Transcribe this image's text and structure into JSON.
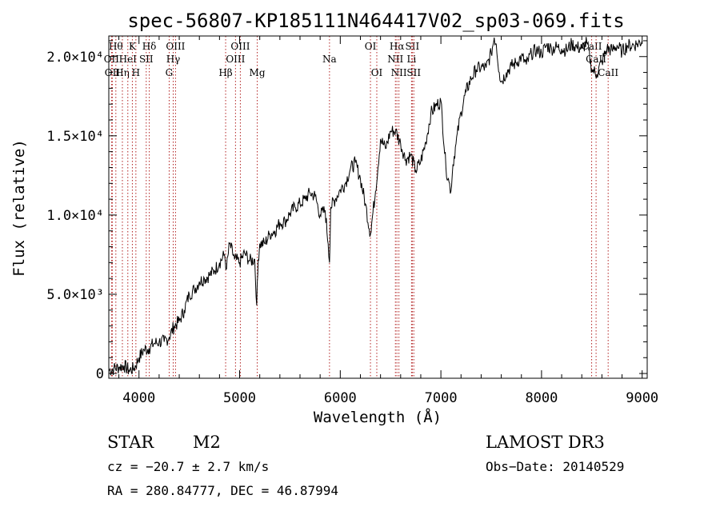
{
  "chart_data": {
    "type": "line",
    "title": "spec-56807-KP185111N464417V02_sp03-069.fits",
    "xlabel": "Wavelength (Å)",
    "ylabel": "Flux (relative)",
    "xlim": [
      3700,
      9050
    ],
    "ylim": [
      -300,
      21300
    ],
    "x_ticks": [
      4000,
      5000,
      6000,
      7000,
      8000,
      9000
    ],
    "x_tick_labels": [
      "4000",
      "5000",
      "6000",
      "7000",
      "8000",
      "9000"
    ],
    "y_ticks": [
      0,
      5000,
      10000,
      15000,
      20000
    ],
    "y_tick_labels": [
      "0",
      "5.0×10³",
      "1.0×10⁴",
      "1.5×10⁴",
      "2.0×10⁴"
    ],
    "series": [
      {
        "name": "spectrum",
        "x": [
          3700,
          3750,
          3800,
          3850,
          3900,
          3950,
          4000,
          4050,
          4100,
          4150,
          4200,
          4250,
          4300,
          4350,
          4400,
          4450,
          4500,
          4550,
          4600,
          4650,
          4700,
          4750,
          4800,
          4850,
          4870,
          4900,
          4950,
          5000,
          5050,
          5100,
          5150,
          5170,
          5185,
          5200,
          5250,
          5300,
          5350,
          5400,
          5450,
          5500,
          5550,
          5600,
          5650,
          5700,
          5750,
          5800,
          5850,
          5880,
          5893,
          5905,
          5950,
          6000,
          6050,
          6100,
          6150,
          6200,
          6250,
          6300,
          6350,
          6400,
          6450,
          6500,
          6550,
          6600,
          6650,
          6700,
          6750,
          6800,
          6850,
          6900,
          6950,
          7000,
          7050,
          7080,
          7100,
          7120,
          7150,
          7200,
          7250,
          7300,
          7350,
          7400,
          7450,
          7500,
          7530,
          7550,
          7580,
          7600,
          7650,
          7700,
          7750,
          7800,
          7850,
          7900,
          7950,
          8000,
          8050,
          8100,
          8150,
          8200,
          8250,
          8300,
          8350,
          8400,
          8450,
          8500,
          8550,
          8600,
          8650,
          8700,
          8750,
          8800,
          8850,
          8900,
          8950,
          9000
        ],
        "values": [
          200,
          300,
          400,
          500,
          200,
          300,
          1000,
          1500,
          1600,
          1900,
          2000,
          2000,
          2300,
          3000,
          3300,
          4000,
          5000,
          5300,
          5800,
          6000,
          6200,
          6500,
          7000,
          7500,
          6600,
          8200,
          7200,
          7000,
          7600,
          7100,
          7200,
          4300,
          7200,
          8200,
          8200,
          8800,
          9000,
          9500,
          9600,
          10100,
          10500,
          10700,
          11000,
          11400,
          11200,
          10000,
          10300,
          8200,
          7000,
          10500,
          11000,
          11600,
          12000,
          12900,
          13300,
          12300,
          10700,
          8800,
          11500,
          14800,
          14200,
          15300,
          15300,
          14500,
          13500,
          13800,
          12800,
          13400,
          14600,
          16400,
          16900,
          17200,
          13000,
          12100,
          11500,
          13200,
          14500,
          16500,
          17800,
          18600,
          19200,
          19300,
          19300,
          20200,
          21200,
          20800,
          19000,
          18400,
          19000,
          19400,
          19600,
          20000,
          19500,
          20200,
          20400,
          20200,
          20700,
          20500,
          20600,
          20500,
          20400,
          20800,
          20600,
          20500,
          20900,
          19200,
          18900,
          19700,
          20500,
          20400,
          20700,
          20300,
          20700,
          20700,
          20800,
          21000
        ]
      }
    ],
    "line_markers": [
      {
        "wl": 3770,
        "row": 1,
        "label": "Hθ"
      },
      {
        "wl": 3727,
        "row": 2,
        "label": "OII"
      },
      {
        "wl": 3735,
        "row": 3,
        "label": "OII"
      },
      {
        "wl": 3835,
        "row": 3,
        "label": "Hη"
      },
      {
        "wl": 3889,
        "row": 2,
        "label": "HeI"
      },
      {
        "wl": 3934,
        "row": 1,
        "label": "K"
      },
      {
        "wl": 3969,
        "row": 3,
        "label": "H"
      },
      {
        "wl": 4072,
        "row": 2,
        "label": "SII"
      },
      {
        "wl": 4102,
        "row": 1,
        "label": "Hδ"
      },
      {
        "wl": 4300,
        "row": 3,
        "label": "G"
      },
      {
        "wl": 4340,
        "row": 2,
        "label": "Hγ"
      },
      {
        "wl": 4363,
        "row": 1,
        "label": "OIII"
      },
      {
        "wl": 4861,
        "row": 3,
        "label": "Hβ"
      },
      {
        "wl": 4959,
        "row": 2,
        "label": "OIII"
      },
      {
        "wl": 5007,
        "row": 1,
        "label": "OIII"
      },
      {
        "wl": 5175,
        "row": 3,
        "label": "Mg"
      },
      {
        "wl": 5893,
        "row": 2,
        "label": "Na"
      },
      {
        "wl": 6300,
        "row": 1,
        "label": "OI"
      },
      {
        "wl": 6363,
        "row": 3,
        "label": "OI"
      },
      {
        "wl": 6548,
        "row": 2,
        "label": "NII"
      },
      {
        "wl": 6563,
        "row": 1,
        "label": "Hα"
      },
      {
        "wl": 6583,
        "row": 3,
        "label": "NII"
      },
      {
        "wl": 6708,
        "row": 2,
        "label": "Li"
      },
      {
        "wl": 6716,
        "row": 1,
        "label": "SII"
      },
      {
        "wl": 6731,
        "row": 3,
        "label": "SII"
      },
      {
        "wl": 8498,
        "row": 1,
        "label": "CaII"
      },
      {
        "wl": 8542,
        "row": 2,
        "label": "CaII"
      },
      {
        "wl": 8662,
        "row": 3,
        "label": "CaII"
      }
    ]
  },
  "info": {
    "class": "STAR",
    "subclass": "M2",
    "survey": "LAMOST DR3",
    "cz": "cz = −20.7 ± 2.7 km/s",
    "obs_date": "Obs−Date: 20140529",
    "coords": "RA = 280.84777, DEC =  46.87994"
  }
}
